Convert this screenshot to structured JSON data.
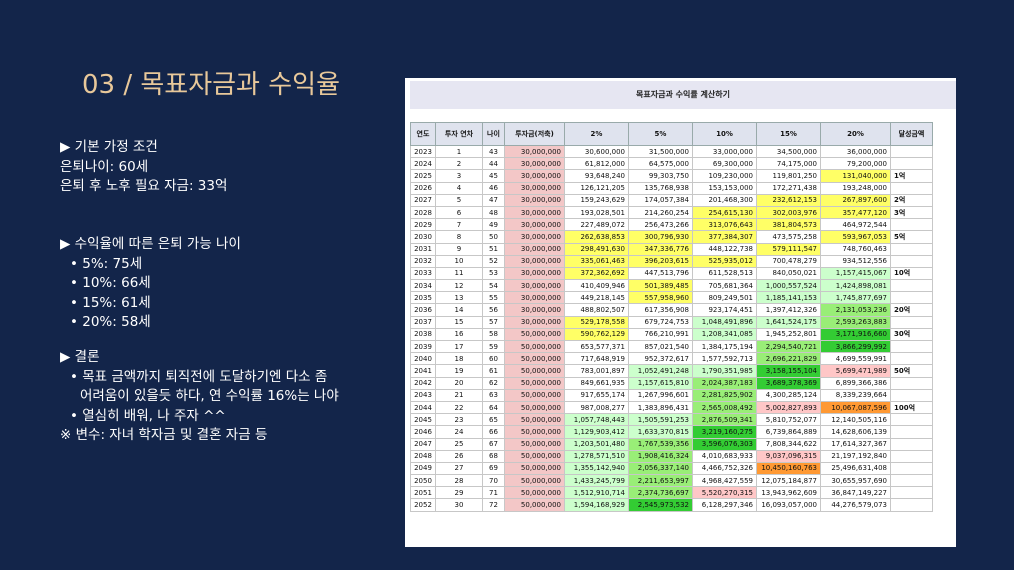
{
  "slide": {
    "title": "03 / 목표자금과 수익율",
    "assumptions": {
      "heading": "▶ 기본 가정 조건",
      "lines": [
        "은퇴나이: 60세",
        "은퇴 후 노후 필요 자금: 33억"
      ]
    },
    "retire_age": {
      "heading": "▶ 수익율에 따른 은퇴 가능 나이",
      "items": [
        "• 5%: 75세",
        "• 10%: 66세",
        "• 15%: 61세",
        "• 20%: 58세"
      ]
    },
    "conclusion": {
      "heading": "▶ 결론",
      "lines": [
        "• 목표 금액까지 퇴직전에 도달하기엔 다소 좀",
        "어려움이 있을듯 하다, 연 수익률 16%는 나야",
        "• 열심히 배워, 나 주자 ^^",
        "※ 변수: 자녀 학자금 및 결혼 자금 등"
      ]
    }
  },
  "sheet": {
    "title": "목표자금과 수익률 계산하기",
    "headers": [
      "연도",
      "투자 연차",
      "나이",
      "투자금(저축)",
      "2%",
      "5%",
      "10%",
      "15%",
      "20%",
      "달성금액"
    ],
    "rows": [
      [
        "2023",
        "1",
        "43",
        "30,000,000",
        "30,600,000",
        "31,500,000",
        "33,000,000",
        "34,500,000",
        "36,000,000",
        ""
      ],
      [
        "2024",
        "2",
        "44",
        "30,000,000",
        "61,812,000",
        "64,575,000",
        "69,300,000",
        "74,175,000",
        "79,200,000",
        ""
      ],
      [
        "2025",
        "3",
        "45",
        "30,000,000",
        "93,648,240",
        "99,303,750",
        "109,230,000",
        "119,801,250",
        "131,040,000",
        "1억"
      ],
      [
        "2026",
        "4",
        "46",
        "30,000,000",
        "126,121,205",
        "135,768,938",
        "153,153,000",
        "172,271,438",
        "193,248,000",
        ""
      ],
      [
        "2027",
        "5",
        "47",
        "30,000,000",
        "159,243,629",
        "174,057,384",
        "201,468,300",
        "232,612,153",
        "267,897,600",
        "2억"
      ],
      [
        "2028",
        "6",
        "48",
        "30,000,000",
        "193,028,501",
        "214,260,254",
        "254,615,130",
        "302,003,976",
        "357,477,120",
        "3억"
      ],
      [
        "2029",
        "7",
        "49",
        "30,000,000",
        "227,489,072",
        "256,473,266",
        "313,076,643",
        "381,804,573",
        "464,972,544",
        ""
      ],
      [
        "2030",
        "8",
        "50",
        "30,000,000",
        "262,638,853",
        "300,796,930",
        "377,384,307",
        "473,575,258",
        "593,967,053",
        "5억"
      ],
      [
        "2031",
        "9",
        "51",
        "30,000,000",
        "298,491,630",
        "347,336,776",
        "448,122,738",
        "579,111,547",
        "748,760,463",
        ""
      ],
      [
        "2032",
        "10",
        "52",
        "30,000,000",
        "335,061,463",
        "396,203,615",
        "525,935,012",
        "700,478,279",
        "934,512,556",
        ""
      ],
      [
        "2033",
        "11",
        "53",
        "30,000,000",
        "372,362,692",
        "447,513,796",
        "611,528,513",
        "840,050,021",
        "1,157,415,067",
        "10억"
      ],
      [
        "2034",
        "12",
        "54",
        "30,000,000",
        "410,409,946",
        "501,389,485",
        "705,681,364",
        "1,000,557,524",
        "1,424,898,081",
        ""
      ],
      [
        "2035",
        "13",
        "55",
        "30,000,000",
        "449,218,145",
        "557,958,960",
        "809,249,501",
        "1,185,141,153",
        "1,745,877,697",
        ""
      ],
      [
        "2036",
        "14",
        "56",
        "30,000,000",
        "488,802,507",
        "617,356,908",
        "923,174,451",
        "1,397,412,326",
        "2,131,053,236",
        "20억"
      ],
      [
        "2037",
        "15",
        "57",
        "30,000,000",
        "529,178,558",
        "679,724,753",
        "1,048,491,896",
        "1,641,524,175",
        "2,593,263,883",
        ""
      ],
      [
        "2038",
        "16",
        "58",
        "50,000,000",
        "590,762,129",
        "766,210,991",
        "1,208,341,085",
        "1,945,252,801",
        "3,171,916,660",
        "30억"
      ],
      [
        "2039",
        "17",
        "59",
        "50,000,000",
        "653,577,371",
        "857,021,540",
        "1,384,175,194",
        "2,294,540,721",
        "3,866,299,992",
        ""
      ],
      [
        "2040",
        "18",
        "60",
        "50,000,000",
        "717,648,919",
        "952,372,617",
        "1,577,592,713",
        "2,696,221,829",
        "4,699,559,991",
        ""
      ],
      [
        "2041",
        "19",
        "61",
        "50,000,000",
        "783,001,897",
        "1,052,491,248",
        "1,790,351,985",
        "3,158,155,104",
        "5,699,471,989",
        "50억"
      ],
      [
        "2042",
        "20",
        "62",
        "50,000,000",
        "849,661,935",
        "1,157,615,810",
        "2,024,387,183",
        "3,689,378,369",
        "6,899,366,386",
        ""
      ],
      [
        "2043",
        "21",
        "63",
        "50,000,000",
        "917,655,174",
        "1,267,996,601",
        "2,281,825,902",
        "4,300,285,124",
        "8,339,239,664",
        ""
      ],
      [
        "2044",
        "22",
        "64",
        "50,000,000",
        "987,008,277",
        "1,383,896,431",
        "2,565,008,492",
        "5,002,827,893",
        "10,067,087,596",
        "100억"
      ],
      [
        "2045",
        "23",
        "65",
        "50,000,000",
        "1,057,748,443",
        "1,505,591,253",
        "2,876,509,341",
        "5,810,752,077",
        "12,140,505,116",
        ""
      ],
      [
        "2046",
        "24",
        "66",
        "50,000,000",
        "1,129,903,412",
        "1,633,370,815",
        "3,219,160,275",
        "6,739,864,889",
        "14,628,606,139",
        ""
      ],
      [
        "2047",
        "25",
        "67",
        "50,000,000",
        "1,203,501,480",
        "1,767,539,356",
        "3,596,076,303",
        "7,808,344,622",
        "17,614,327,367",
        ""
      ],
      [
        "2048",
        "26",
        "68",
        "50,000,000",
        "1,278,571,510",
        "1,908,416,324",
        "4,010,683,933",
        "9,037,096,315",
        "21,197,192,840",
        ""
      ],
      [
        "2049",
        "27",
        "69",
        "50,000,000",
        "1,355,142,940",
        "2,056,337,140",
        "4,466,752,326",
        "10,450,160,763",
        "25,496,631,408",
        ""
      ],
      [
        "2050",
        "28",
        "70",
        "50,000,000",
        "1,433,245,799",
        "2,211,653,997",
        "4,968,427,559",
        "12,075,184,877",
        "30,655,957,690",
        ""
      ],
      [
        "2051",
        "29",
        "71",
        "50,000,000",
        "1,512,910,714",
        "2,374,736,697",
        "5,520,270,315",
        "13,943,962,609",
        "36,847,149,227",
        ""
      ],
      [
        "2052",
        "30",
        "72",
        "50,000,000",
        "1,594,168,929",
        "2,545,973,532",
        "6,128,297,346",
        "16,093,057,000",
        "44,276,579,073",
        ""
      ]
    ],
    "highlights": [
      {
        "row": 0,
        "col": 0,
        "color": "#ffffff"
      },
      {
        "row": 2,
        "col": 8,
        "color": "#ffff66"
      },
      {
        "row": 4,
        "col": 7,
        "color": "#ffff66"
      },
      {
        "row": 4,
        "col": 8,
        "color": "#ffff66"
      },
      {
        "row": 5,
        "col": 6,
        "color": "#ffff66"
      },
      {
        "row": 5,
        "col": 7,
        "color": "#ffff66"
      },
      {
        "row": 5,
        "col": 8,
        "color": "#ffff66"
      },
      {
        "row": 6,
        "col": 6,
        "color": "#ffff66"
      },
      {
        "row": 6,
        "col": 7,
        "color": "#ffff66"
      },
      {
        "row": 7,
        "col": 4,
        "color": "#ffff66"
      },
      {
        "row": 7,
        "col": 5,
        "color": "#ffff66"
      },
      {
        "row": 7,
        "col": 6,
        "color": "#ffff66"
      },
      {
        "row": 7,
        "col": 8,
        "color": "#ffff66"
      },
      {
        "row": 8,
        "col": 4,
        "color": "#ffff66"
      },
      {
        "row": 8,
        "col": 5,
        "color": "#ffff66"
      },
      {
        "row": 8,
        "col": 7,
        "color": "#ffff66"
      },
      {
        "row": 9,
        "col": 4,
        "color": "#ffff66"
      },
      {
        "row": 9,
        "col": 5,
        "color": "#ffff66"
      },
      {
        "row": 9,
        "col": 6,
        "color": "#ffff66"
      },
      {
        "row": 10,
        "col": 4,
        "color": "#ffff66"
      },
      {
        "row": 10,
        "col": 8,
        "color": "#ccffcc"
      },
      {
        "row": 11,
        "col": 5,
        "color": "#ffff66"
      },
      {
        "row": 11,
        "col": 7,
        "color": "#ccffcc"
      },
      {
        "row": 11,
        "col": 8,
        "color": "#ccffcc"
      },
      {
        "row": 12,
        "col": 5,
        "color": "#ffff66"
      },
      {
        "row": 12,
        "col": 7,
        "color": "#ccffcc"
      },
      {
        "row": 12,
        "col": 8,
        "color": "#ccffcc"
      },
      {
        "row": 13,
        "col": 8,
        "color": "#99ee77"
      },
      {
        "row": 14,
        "col": 4,
        "color": "#ffff66"
      },
      {
        "row": 14,
        "col": 6,
        "color": "#ccffcc"
      },
      {
        "row": 14,
        "col": 7,
        "color": "#ccffcc"
      },
      {
        "row": 14,
        "col": 8,
        "color": "#99ee77"
      },
      {
        "row": 15,
        "col": 4,
        "color": "#ffff66"
      },
      {
        "row": 15,
        "col": 6,
        "color": "#ccffcc"
      },
      {
        "row": 15,
        "col": 8,
        "color": "#33cc33"
      },
      {
        "row": 16,
        "col": 7,
        "color": "#99ee77"
      },
      {
        "row": 16,
        "col": 8,
        "color": "#33cc33"
      },
      {
        "row": 17,
        "col": 7,
        "color": "#99ee77"
      },
      {
        "row": 18,
        "col": 5,
        "color": "#ccffcc"
      },
      {
        "row": 18,
        "col": 6,
        "color": "#ccffcc"
      },
      {
        "row": 18,
        "col": 7,
        "color": "#33cc33"
      },
      {
        "row": 18,
        "col": 8,
        "color": "#ffc7c7"
      },
      {
        "row": 19,
        "col": 5,
        "color": "#ccffcc"
      },
      {
        "row": 19,
        "col": 6,
        "color": "#99ee77"
      },
      {
        "row": 19,
        "col": 7,
        "color": "#33cc33"
      },
      {
        "row": 20,
        "col": 6,
        "color": "#99ee77"
      },
      {
        "row": 21,
        "col": 6,
        "color": "#99ee77"
      },
      {
        "row": 21,
        "col": 7,
        "color": "#ffc7c7"
      },
      {
        "row": 21,
        "col": 8,
        "color": "#ff9933"
      },
      {
        "row": 22,
        "col": 4,
        "color": "#ccffcc"
      },
      {
        "row": 22,
        "col": 5,
        "color": "#ccffcc"
      },
      {
        "row": 22,
        "col": 6,
        "color": "#99ee77"
      },
      {
        "row": 23,
        "col": 4,
        "color": "#ccffcc"
      },
      {
        "row": 23,
        "col": 5,
        "color": "#ccffcc"
      },
      {
        "row": 23,
        "col": 6,
        "color": "#33cc33"
      },
      {
        "row": 24,
        "col": 4,
        "color": "#ccffcc"
      },
      {
        "row": 24,
        "col": 5,
        "color": "#99ee77"
      },
      {
        "row": 24,
        "col": 6,
        "color": "#33cc33"
      },
      {
        "row": 25,
        "col": 4,
        "color": "#ccffcc"
      },
      {
        "row": 25,
        "col": 5,
        "color": "#99ee77"
      },
      {
        "row": 25,
        "col": 7,
        "color": "#ffc7c7"
      },
      {
        "row": 26,
        "col": 4,
        "color": "#ccffcc"
      },
      {
        "row": 26,
        "col": 5,
        "color": "#99ee77"
      },
      {
        "row": 26,
        "col": 7,
        "color": "#ff9933"
      },
      {
        "row": 27,
        "col": 4,
        "color": "#ccffcc"
      },
      {
        "row": 27,
        "col": 5,
        "color": "#99ee77"
      },
      {
        "row": 28,
        "col": 4,
        "color": "#ccffcc"
      },
      {
        "row": 28,
        "col": 5,
        "color": "#99ee77"
      },
      {
        "row": 28,
        "col": 6,
        "color": "#ffc7c7"
      },
      {
        "row": 29,
        "col": 4,
        "color": "#ccffcc"
      },
      {
        "row": 29,
        "col": 5,
        "color": "#33cc33"
      }
    ]
  }
}
